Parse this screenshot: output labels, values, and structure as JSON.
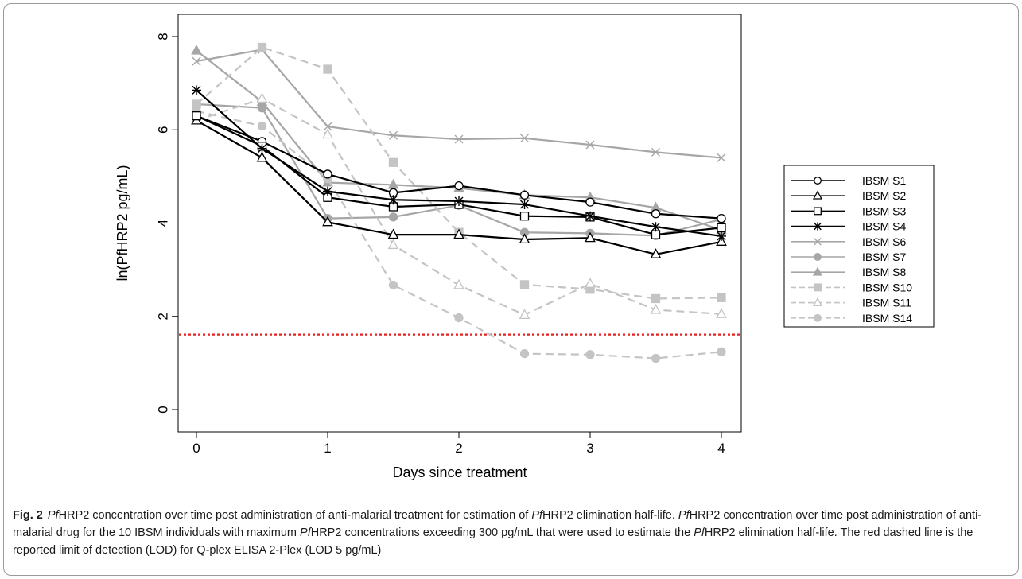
{
  "chart_data": {
    "type": "line",
    "xlabel": "Days since treatment",
    "ylabel": "ln(PfHRP2 pg/mL)",
    "xlim": [
      0,
      4
    ],
    "ylim": [
      0,
      8
    ],
    "xticks": [
      0,
      1,
      2,
      3,
      4
    ],
    "yticks": [
      0,
      2,
      4,
      6,
      8
    ],
    "x": [
      0,
      0.5,
      1,
      1.5,
      2,
      2.5,
      3,
      3.5,
      4
    ],
    "legend_position": "right",
    "reference_line": {
      "y": 1.61,
      "color": "#e32020",
      "style": "dotted"
    },
    "series": [
      {
        "name": "IBSM S1",
        "color": "#000000",
        "dash": false,
        "marker": "circle-open",
        "values": [
          6.3,
          5.75,
          5.05,
          4.65,
          4.8,
          4.6,
          4.45,
          4.2,
          4.1
        ]
      },
      {
        "name": "IBSM S2",
        "color": "#000000",
        "dash": false,
        "marker": "triangle-open",
        "values": [
          6.2,
          5.4,
          4.02,
          3.75,
          3.75,
          3.65,
          3.68,
          3.33,
          3.6
        ]
      },
      {
        "name": "IBSM S3",
        "color": "#000000",
        "dash": false,
        "marker": "square-open",
        "values": [
          6.3,
          5.65,
          4.55,
          4.35,
          4.4,
          4.15,
          4.13,
          3.75,
          3.9
        ]
      },
      {
        "name": "IBSM S4",
        "color": "#000000",
        "dash": false,
        "marker": "star",
        "values": [
          6.85,
          5.6,
          4.68,
          4.5,
          4.47,
          4.4,
          4.15,
          3.92,
          3.72
        ]
      },
      {
        "name": "IBSM S6",
        "color": "#a6a6a6",
        "dash": false,
        "marker": "x",
        "values": [
          7.47,
          7.72,
          6.07,
          5.88,
          5.8,
          5.82,
          5.68,
          5.52,
          5.4
        ]
      },
      {
        "name": "IBSM S7",
        "color": "#a6a6a6",
        "dash": false,
        "marker": "circle-filled",
        "values": [
          6.55,
          6.47,
          4.1,
          4.13,
          4.38,
          3.8,
          3.78,
          3.73,
          4.08
        ]
      },
      {
        "name": "IBSM S8",
        "color": "#a6a6a6",
        "dash": false,
        "marker": "triangle-filled",
        "values": [
          7.7,
          6.6,
          4.87,
          4.82,
          4.75,
          4.6,
          4.55,
          4.33,
          3.85
        ]
      },
      {
        "name": "IBSM S10",
        "color": "#c4c4c4",
        "dash": true,
        "marker": "square-filled",
        "values": [
          6.55,
          7.77,
          7.3,
          5.3,
          3.8,
          2.68,
          2.58,
          2.38,
          2.4
        ]
      },
      {
        "name": "IBSM S11",
        "color": "#c4c4c4",
        "dash": true,
        "marker": "triangle-open",
        "values": [
          6.2,
          6.67,
          5.9,
          3.53,
          2.67,
          2.03,
          2.7,
          2.14,
          2.05
        ]
      },
      {
        "name": "IBSM S14",
        "color": "#c4c4c4",
        "dash": true,
        "marker": "circle-filled",
        "values": [
          6.4,
          6.08,
          4.95,
          2.67,
          1.97,
          1.2,
          1.18,
          1.1,
          1.24
        ]
      }
    ]
  },
  "caption": {
    "label": "Fig. 2",
    "parts": [
      {
        "text": "Pf",
        "italic": true
      },
      {
        "text": "HRP2 concentration over time post administration of anti-malarial treatment for estimation of ",
        "italic": false
      },
      {
        "text": "Pf",
        "italic": true
      },
      {
        "text": "HRP2 elimination half-life. ",
        "italic": false
      },
      {
        "text": "Pf",
        "italic": true
      },
      {
        "text": "HRP2 concentration over time post administration of anti-malarial drug for the 10 IBSM individuals with maximum ",
        "italic": false
      },
      {
        "text": "Pf",
        "italic": true
      },
      {
        "text": "HRP2 concentrations exceeding 300 pg/mL that were used to estimate the ",
        "italic": false
      },
      {
        "text": "Pf",
        "italic": true
      },
      {
        "text": "HRP2 elimination half-life. The red dashed line is the reported limit of detection (LOD) for Q-plex ELISA 2-Plex (LOD 5 pg/mL)",
        "italic": false
      }
    ]
  }
}
